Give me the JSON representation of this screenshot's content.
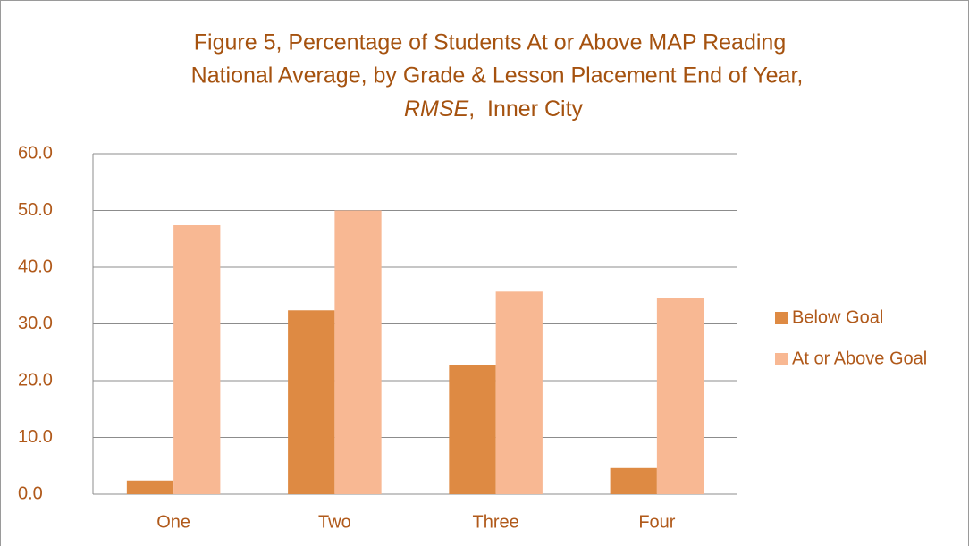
{
  "chart_data": {
    "type": "bar",
    "title": [
      "Figure 5, Percentage of Students At or Above MAP Reading",
      "National Average, by Grade & Lesson Placement End of Year,",
      [
        "RMSE",
        ",  Inner City"
      ]
    ],
    "categories": [
      "One",
      "Two",
      "Three",
      "Four"
    ],
    "series": [
      {
        "name": "Below Goal",
        "color": "#de8a43",
        "values": [
          2.4,
          32.4,
          22.7,
          4.6
        ]
      },
      {
        "name": "At or Above Goal",
        "color": "#f8b893",
        "values": [
          47.4,
          50.0,
          35.7,
          34.6
        ]
      }
    ],
    "ylim": [
      0,
      60
    ],
    "yticks": [
      {
        "value": 0,
        "label": "0.0"
      },
      {
        "value": 10,
        "label": "10.0"
      },
      {
        "value": 20,
        "label": "20.0"
      },
      {
        "value": 30,
        "label": "30.0"
      },
      {
        "value": 40,
        "label": "40.0"
      },
      {
        "value": 50,
        "label": "50.0"
      },
      {
        "value": 60,
        "label": "60.0"
      }
    ],
    "grid": true,
    "legend": "right"
  }
}
